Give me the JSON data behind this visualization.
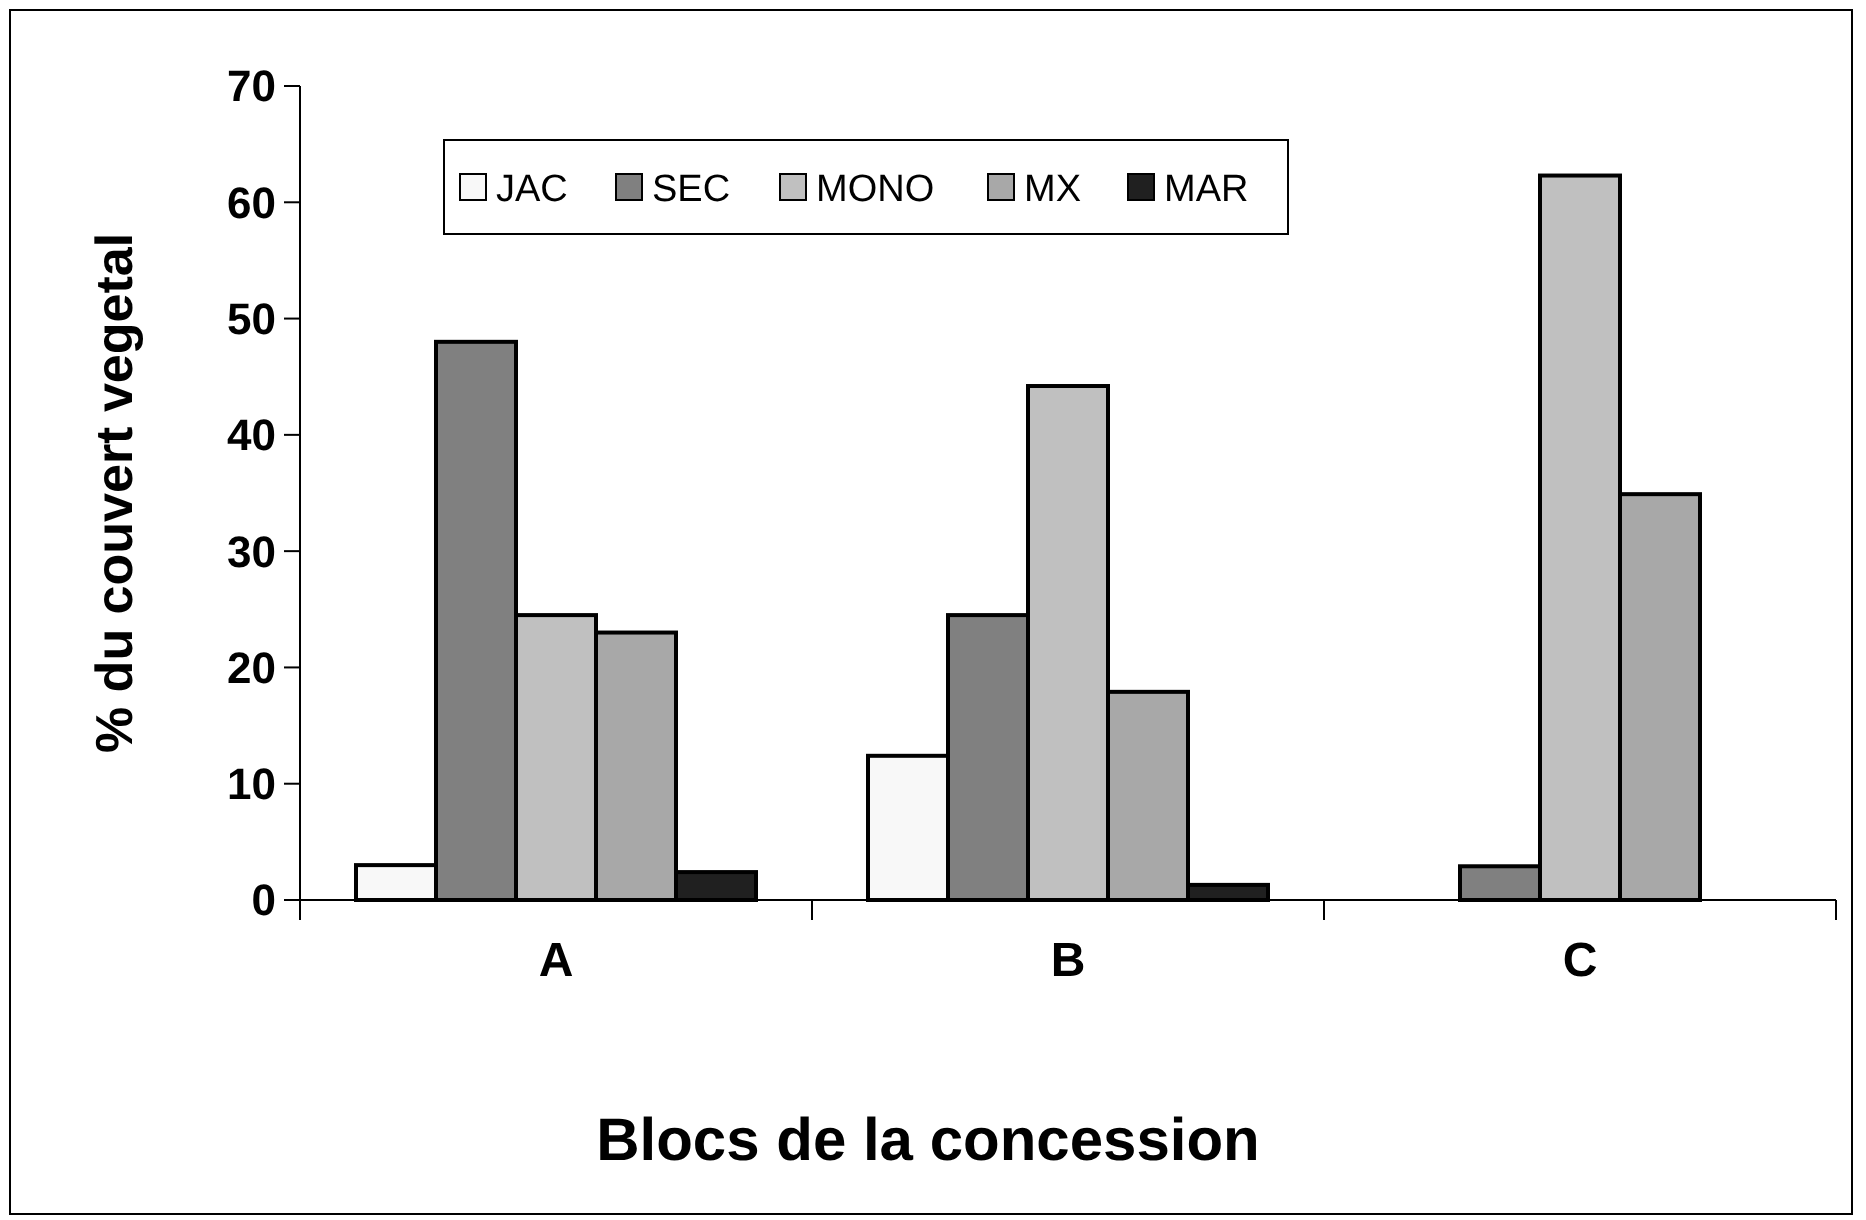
{
  "chart_data": {
    "type": "bar",
    "xlabel": "Blocs de la concession",
    "ylabel": "% du couvert vegetal",
    "categories": [
      "A",
      "B",
      "C"
    ],
    "series": [
      {
        "name": "JAC",
        "color": "#f8f8f8",
        "values": [
          3,
          12.4,
          0
        ]
      },
      {
        "name": "SEC",
        "color": "#808080",
        "values": [
          48,
          24.5,
          2.9
        ]
      },
      {
        "name": "MONO",
        "color": "#c0c0c0",
        "values": [
          24.5,
          44.2,
          62.3
        ]
      },
      {
        "name": "MX",
        "color": "#a8a8a8",
        "values": [
          23,
          17.9,
          34.9
        ]
      },
      {
        "name": "MAR",
        "color": "#202020",
        "values": [
          2.4,
          1.3,
          0
        ]
      }
    ],
    "ylim": [
      0,
      70
    ],
    "yticks": [
      0,
      10,
      20,
      30,
      40,
      50,
      60,
      70
    ],
    "legend": "top left",
    "grid": false
  }
}
